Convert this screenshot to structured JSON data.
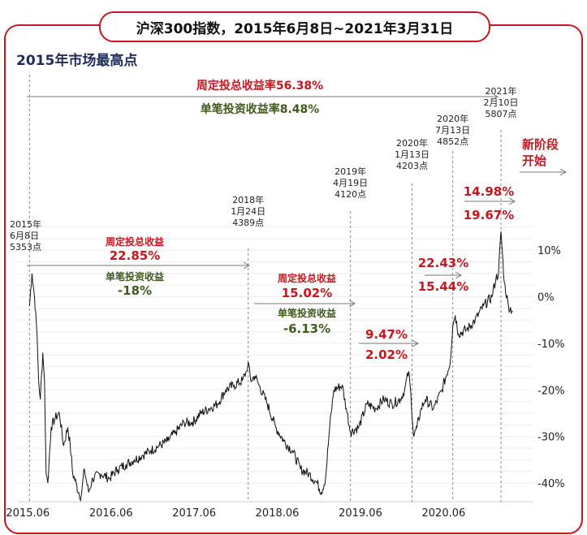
{
  "title": "沪深300指数，2015年6月8日~2021年3月31日",
  "subtitle": "2015年市场最高点",
  "chart_data": {
    "type": "line",
    "title": "沪深300指数，2015年6月8日~2021年3月31日",
    "xlabel": "",
    "ylabel": "",
    "x_ticks": [
      "2015.06",
      "2016.06",
      "2017.06",
      "2018.06",
      "2019.06",
      "2020.06"
    ],
    "y_ticks": [
      "10%",
      "0%",
      "-10%",
      "-20%",
      "-30%",
      "-40%"
    ],
    "y_tick_values": [
      10,
      0,
      -10,
      -20,
      -30,
      -40
    ],
    "ylim": [
      -44,
      17
    ],
    "xlim": [
      2015.3,
      2021.5
    ],
    "series": [
      {
        "name": "沪深300指数涨跌幅",
        "x": [
          2015.44,
          2015.47,
          2015.5,
          2015.53,
          2015.55,
          2015.57,
          2015.6,
          2015.62,
          2015.64,
          2015.66,
          2015.7,
          2015.75,
          2015.8,
          2015.85,
          2015.9,
          2015.93,
          2015.96,
          2016.0,
          2016.03,
          2016.06,
          2016.1,
          2016.15,
          2016.2,
          2016.3,
          2016.4,
          2016.5,
          2016.6,
          2016.7,
          2016.8,
          2016.9,
          2017.0,
          2017.1,
          2017.2,
          2017.3,
          2017.4,
          2017.5,
          2017.6,
          2017.7,
          2017.8,
          2017.9,
          2018.0,
          2018.05,
          2018.07,
          2018.1,
          2018.15,
          2018.2,
          2018.3,
          2018.4,
          2018.5,
          2018.6,
          2018.7,
          2018.8,
          2018.9,
          2018.95,
          2019.0,
          2019.05,
          2019.1,
          2019.2,
          2019.25,
          2019.3,
          2019.4,
          2019.5,
          2019.6,
          2019.7,
          2019.8,
          2019.9,
          2019.95,
          2020.0,
          2020.03,
          2020.06,
          2020.1,
          2020.15,
          2020.2,
          2020.3,
          2020.4,
          2020.5,
          2020.53,
          2020.56,
          2020.6,
          2020.7,
          2020.8,
          2020.9,
          2021.0,
          2021.05,
          2021.08,
          2021.11,
          2021.15,
          2021.2,
          2021.25
        ],
        "values": [
          -2,
          5,
          0,
          -8,
          -18,
          -22,
          -12,
          -18,
          -38,
          -40,
          -28,
          -26,
          -25,
          -32,
          -28,
          -32,
          -38,
          -40,
          -42,
          -43,
          -37,
          -42,
          -39,
          -38,
          -39,
          -37,
          -36,
          -35,
          -34,
          -33,
          -32,
          -31,
          -29,
          -27,
          -27,
          -25,
          -24,
          -23,
          -20,
          -19,
          -18,
          -16,
          -14,
          -18,
          -17,
          -19,
          -23,
          -28,
          -31,
          -33,
          -37,
          -38,
          -40,
          -42,
          -39,
          -28,
          -20,
          -19,
          -24,
          -29,
          -28,
          -23,
          -24,
          -22,
          -23,
          -22,
          -20,
          -16,
          -22,
          -30,
          -28,
          -24,
          -22,
          -24,
          -20,
          -14,
          -6,
          -4,
          -8,
          -7,
          -5,
          -2,
          0,
          4,
          5,
          14,
          3,
          -2,
          -3
        ]
      }
    ],
    "vlines": [
      {
        "x": 2015.44,
        "label_lines": [
          "2015年",
          "6月8日",
          "5353点"
        ]
      },
      {
        "x": 2018.07,
        "label_lines": [
          "2018年",
          "1月24日",
          "4389点"
        ]
      },
      {
        "x": 2019.3,
        "label_lines": [
          "2019年",
          "4月19日",
          "4120点"
        ]
      },
      {
        "x": 2020.04,
        "label_lines": [
          "2020年",
          "1月13日",
          "4203点"
        ]
      },
      {
        "x": 2020.53,
        "label_lines": [
          "2020年",
          "7月13日",
          "4852点"
        ]
      },
      {
        "x": 2021.11,
        "label_lines": [
          "2021年",
          "2月10日",
          "5807点"
        ]
      }
    ],
    "annotations": {
      "overall_fixed": "周定投总收益率56.38%",
      "overall_single": "单笔投资收益率8.48%",
      "p1_fixed_label": "周定投总收益",
      "p1_fixed_value": "22.85%",
      "p1_single_label": "单笔投资收益",
      "p1_single_value": "-18%",
      "p2_fixed_label": "周定投总收益",
      "p2_fixed_value": "15.02%",
      "p2_single_label": "单笔投资收益",
      "p2_single_value": "-6.13%",
      "p3_fixed_value": "9.47%",
      "p3_single_value": "2.02%",
      "p4_fixed_value": "22.43%",
      "p4_single_value": "15.44%",
      "p5_fixed_value": "14.98%",
      "p5_single_value": "19.67%",
      "new_stage_line1": "新阶段",
      "new_stage_line2": "开始"
    },
    "colors": {
      "line": "#111111",
      "fixed": "#c9151e",
      "single": "#3f5a1e",
      "title": "#1f2d5a",
      "frame": "#c9151e"
    }
  }
}
